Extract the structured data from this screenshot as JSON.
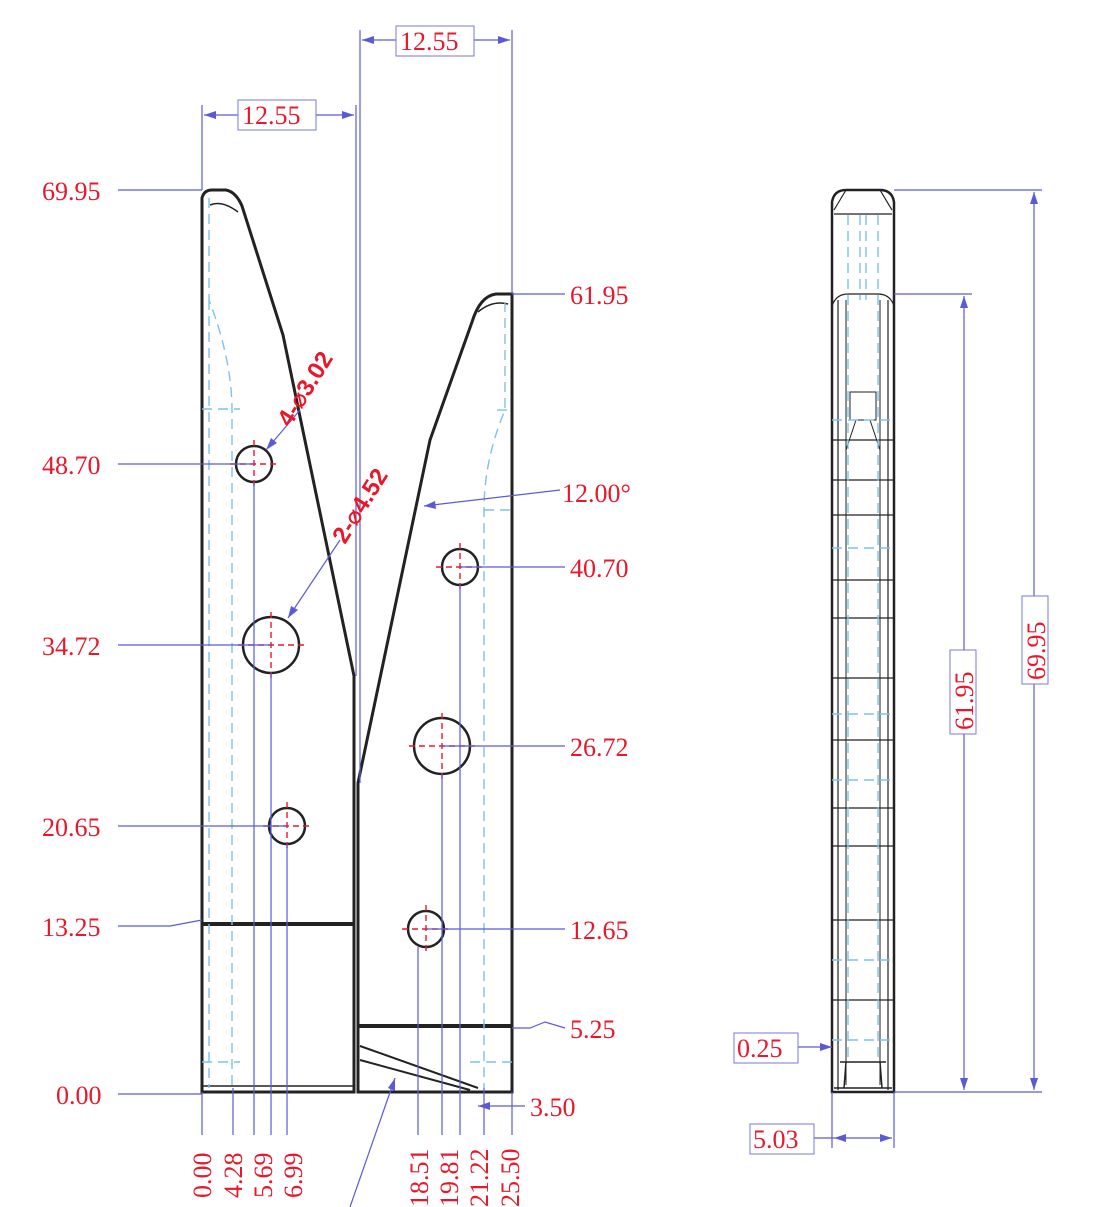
{
  "colors": {
    "dimension_text": "#e8182a",
    "dimension_line": "#5a5ad8",
    "hidden_line": "#7cc3ea",
    "outline": "#222222"
  },
  "front_view": {
    "top_widths": [
      "12.55",
      "12.55"
    ],
    "left_heights": [
      "69.95",
      "48.70",
      "34.72",
      "20.65",
      "13.25",
      "0.00"
    ],
    "right_heights": [
      "61.95",
      "12.00°",
      "40.70",
      "26.72",
      "12.65",
      "5.25",
      "3.50"
    ],
    "bottom_x": [
      "0.00",
      "4.28",
      "5.69",
      "6.99",
      "18.51",
      "19.81",
      "21.22",
      "25.50"
    ],
    "hole_note_small": "4-⌀3.02",
    "hole_note_large": "2-⌀4.52"
  },
  "side_view": {
    "height_outer": "69.95",
    "height_inner": "61.95",
    "offset": "0.25",
    "thickness": "5.03"
  }
}
